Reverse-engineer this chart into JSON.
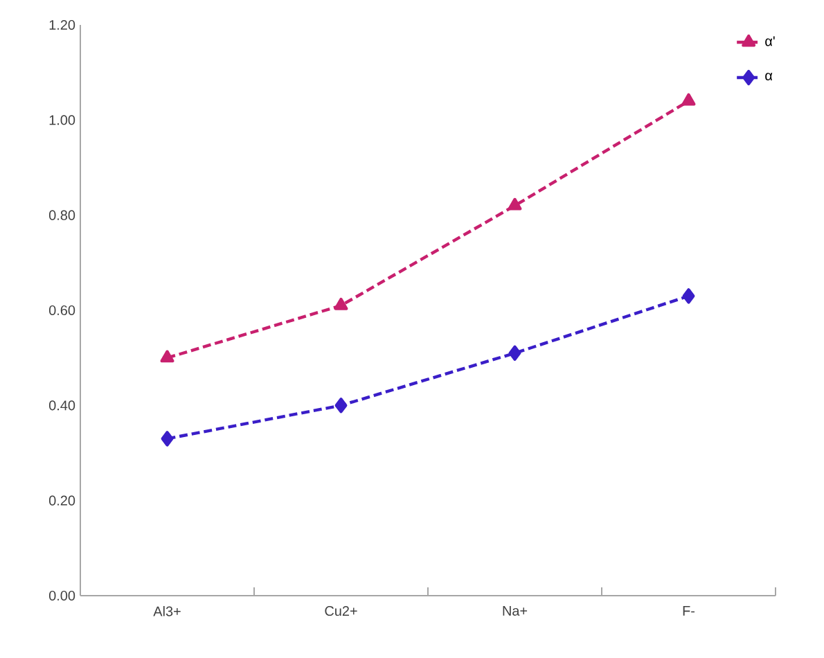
{
  "chart_data": {
    "type": "line",
    "categories": [
      "Al3+",
      "Cu2+",
      "Na+",
      "F-"
    ],
    "series": [
      {
        "name": "α'",
        "color": "#c8206e",
        "values": [
          0.5,
          0.61,
          0.82,
          1.04
        ],
        "marker": "triangle"
      },
      {
        "name": "α",
        "color": "#3a1ec8",
        "values": [
          0.33,
          0.4,
          0.51,
          0.63
        ],
        "marker": "diamond"
      }
    ],
    "ylim": [
      0,
      1.2
    ],
    "yticks": [
      {
        "value": 0,
        "label": "0.00"
      },
      {
        "value": 0.2,
        "label": "0.20"
      },
      {
        "value": 0.4,
        "label": "0.40"
      },
      {
        "value": 0.6,
        "label": "0.60"
      },
      {
        "value": 0.8,
        "label": "0.80"
      },
      {
        "value": 1.0,
        "label": "1.00"
      },
      {
        "value": 1.2,
        "label": "1.20"
      }
    ],
    "grid": false,
    "legend": "top right",
    "line_style": "dashed"
  }
}
